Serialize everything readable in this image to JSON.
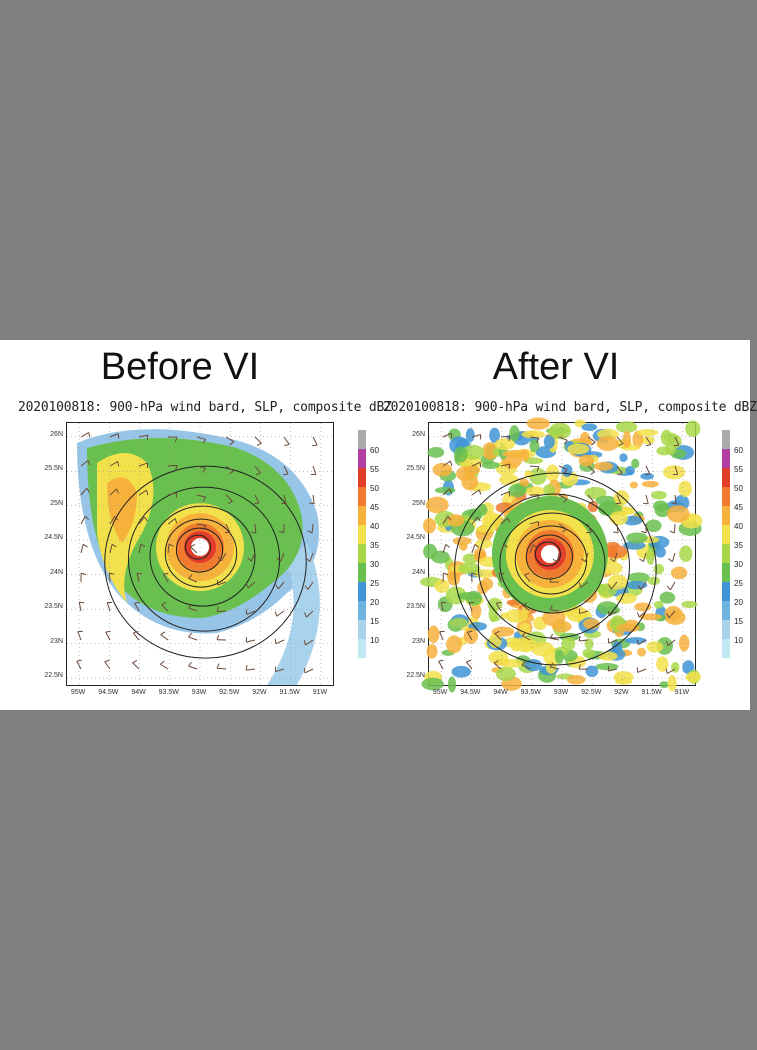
{
  "panels": [
    {
      "heading": "Before VI",
      "subtitle": "2020100818: 900-hPa wind bard, SLP, composite dBZ"
    },
    {
      "heading": "After VI",
      "subtitle": "2020100818: 900-hPa wind bard, SLP, composite dBZ"
    }
  ],
  "chart_data": [
    {
      "type": "heatmap",
      "title": "Before VI",
      "subtitle": "2020100818: 900-hPa wind bard, SLP, composite dBZ",
      "x_ticks": [
        "95W",
        "94.5W",
        "94W",
        "93.5W",
        "93W",
        "92.5W",
        "92W",
        "91.5W",
        "91W"
      ],
      "y_ticks": [
        "26N",
        "25.5N",
        "25N",
        "24.5N",
        "24N",
        "23.5N",
        "23N",
        "22.5N"
      ],
      "xlim": [
        -95.2,
        -90.8
      ],
      "ylim": [
        22.4,
        26.2
      ],
      "colorbar": {
        "levels": [
          10,
          15,
          20,
          25,
          30,
          35,
          40,
          45,
          50,
          55,
          60
        ],
        "unit": "dBZ"
      },
      "storm_center": {
        "lon": -93.0,
        "lat": 24.4
      },
      "grid": true
    },
    {
      "type": "heatmap",
      "title": "After VI",
      "subtitle": "2020100818: 900-hPa wind bard, SLP, composite dBZ",
      "x_ticks": [
        "95W",
        "94.5W",
        "94W",
        "93.5W",
        "93W",
        "92.5W",
        "92W",
        "91.5W",
        "91W"
      ],
      "y_ticks": [
        "26N",
        "25.5N",
        "25N",
        "24.5N",
        "24N",
        "23.5N",
        "23N",
        "22.5N"
      ],
      "xlim": [
        -95.2,
        -90.8
      ],
      "ylim": [
        22.4,
        26.2
      ],
      "colorbar": {
        "levels": [
          10,
          15,
          20,
          25,
          30,
          35,
          40,
          45,
          50,
          55,
          60
        ],
        "unit": "dBZ"
      },
      "storm_center": {
        "lon": -93.2,
        "lat": 24.3
      },
      "grid": true
    }
  ],
  "colorbar_colors": [
    "#bfe8f2",
    "#a9d3ec",
    "#6fb3e0",
    "#3f95d6",
    "#69c04f",
    "#a8d84a",
    "#f2e14a",
    "#f7b23b",
    "#f07a2e",
    "#e23c2a",
    "#b43fa0",
    "#aaaaaa"
  ]
}
